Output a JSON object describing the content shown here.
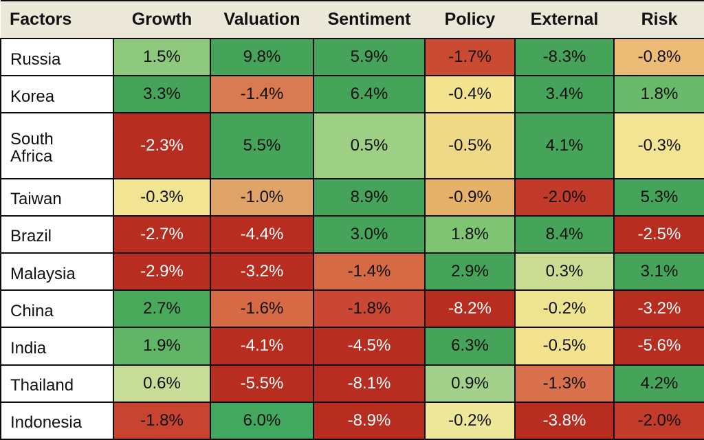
{
  "colors": {
    "header_bg": "#ebe8da",
    "grid_border": "#0d0d0d",
    "label_bg": "#ffffff",
    "text_dark": "#101010",
    "text_light": "#ffffff",
    "strong_green": "#45a35a",
    "dark_red": "#b72d20"
  },
  "table": {
    "header": {
      "factor_label": "Factors",
      "columns": [
        "Growth",
        "Valuation",
        "Sentiment",
        "Policy",
        "External",
        "Risk"
      ]
    },
    "rows": [
      {
        "country": "Russia",
        "cells": [
          {
            "value": "1.5%",
            "bg": "#8dc87d",
            "fg": "#101010"
          },
          {
            "value": "9.8%",
            "bg": "#45a35a",
            "fg": "#101010"
          },
          {
            "value": "5.9%",
            "bg": "#45a35a",
            "fg": "#101010"
          },
          {
            "value": "-1.7%",
            "bg": "#cb4a32",
            "fg": "#101010"
          },
          {
            "value": "-8.3%",
            "bg": "#45a35a",
            "fg": "#101010"
          },
          {
            "value": "-0.8%",
            "bg": "#ecbc76",
            "fg": "#101010"
          }
        ]
      },
      {
        "country": "Korea",
        "cells": [
          {
            "value": "3.3%",
            "bg": "#45a35a",
            "fg": "#101010"
          },
          {
            "value": "-1.4%",
            "bg": "#d87a52",
            "fg": "#101010"
          },
          {
            "value": "6.4%",
            "bg": "#45a35a",
            "fg": "#101010"
          },
          {
            "value": "-0.4%",
            "bg": "#f3e38e",
            "fg": "#101010"
          },
          {
            "value": "3.4%",
            "bg": "#45a35a",
            "fg": "#101010"
          },
          {
            "value": "1.8%",
            "bg": "#69ba6b",
            "fg": "#101010"
          }
        ]
      },
      {
        "country": "South\nAfrica",
        "cells": [
          {
            "value": "-2.3%",
            "bg": "#b72d20",
            "fg": "#ffffff"
          },
          {
            "value": "5.5%",
            "bg": "#45a35a",
            "fg": "#101010"
          },
          {
            "value": "0.5%",
            "bg": "#9dcf85",
            "fg": "#101010"
          },
          {
            "value": "-0.5%",
            "bg": "#efd987",
            "fg": "#101010"
          },
          {
            "value": "4.1%",
            "bg": "#45a35a",
            "fg": "#101010"
          },
          {
            "value": "-0.3%",
            "bg": "#f2e492",
            "fg": "#101010"
          }
        ]
      },
      {
        "country": "Taiwan",
        "cells": [
          {
            "value": "-0.3%",
            "bg": "#f2e492",
            "fg": "#101010"
          },
          {
            "value": "-1.0%",
            "bg": "#e0a367",
            "fg": "#101010"
          },
          {
            "value": "8.9%",
            "bg": "#45a35a",
            "fg": "#101010"
          },
          {
            "value": "-0.9%",
            "bg": "#e6b269",
            "fg": "#101010"
          },
          {
            "value": "-2.0%",
            "bg": "#c23a29",
            "fg": "#101010"
          },
          {
            "value": "5.3%",
            "bg": "#45a35a",
            "fg": "#101010"
          }
        ]
      },
      {
        "country": "Brazil",
        "cells": [
          {
            "value": "-2.7%",
            "bg": "#b72d20",
            "fg": "#ffffff"
          },
          {
            "value": "-4.4%",
            "bg": "#b72d20",
            "fg": "#ffffff"
          },
          {
            "value": "3.0%",
            "bg": "#45a35a",
            "fg": "#101010"
          },
          {
            "value": "1.8%",
            "bg": "#7ec473",
            "fg": "#101010"
          },
          {
            "value": "8.4%",
            "bg": "#45a35a",
            "fg": "#101010"
          },
          {
            "value": "-2.5%",
            "bg": "#b72d20",
            "fg": "#ffffff"
          }
        ]
      },
      {
        "country": "Malaysia",
        "cells": [
          {
            "value": "-2.9%",
            "bg": "#b72d20",
            "fg": "#ffffff"
          },
          {
            "value": "-3.2%",
            "bg": "#b72d20",
            "fg": "#ffffff"
          },
          {
            "value": "-1.4%",
            "bg": "#d66a45",
            "fg": "#101010"
          },
          {
            "value": "2.9%",
            "bg": "#45a35a",
            "fg": "#101010"
          },
          {
            "value": "0.3%",
            "bg": "#cbdc93",
            "fg": "#101010"
          },
          {
            "value": "3.1%",
            "bg": "#45a35a",
            "fg": "#101010"
          }
        ]
      },
      {
        "country": "China",
        "cells": [
          {
            "value": "2.7%",
            "bg": "#48a95b",
            "fg": "#101010"
          },
          {
            "value": "-1.6%",
            "bg": "#d66a45",
            "fg": "#101010"
          },
          {
            "value": "-1.8%",
            "bg": "#c94733",
            "fg": "#101010"
          },
          {
            "value": "-8.2%",
            "bg": "#b72d20",
            "fg": "#ffffff"
          },
          {
            "value": "-0.2%",
            "bg": "#eee48f",
            "fg": "#101010"
          },
          {
            "value": "-3.2%",
            "bg": "#b72d20",
            "fg": "#ffffff"
          }
        ]
      },
      {
        "country": "India",
        "cells": [
          {
            "value": "1.9%",
            "bg": "#61b566",
            "fg": "#101010"
          },
          {
            "value": "-4.1%",
            "bg": "#b72d20",
            "fg": "#ffffff"
          },
          {
            "value": "-4.5%",
            "bg": "#b72d20",
            "fg": "#ffffff"
          },
          {
            "value": "6.3%",
            "bg": "#45a35a",
            "fg": "#101010"
          },
          {
            "value": "-0.5%",
            "bg": "#f3e38e",
            "fg": "#101010"
          },
          {
            "value": "-5.6%",
            "bg": "#b72d20",
            "fg": "#ffffff"
          }
        ]
      },
      {
        "country": "Thailand",
        "cells": [
          {
            "value": "0.6%",
            "bg": "#c6dc97",
            "fg": "#101010"
          },
          {
            "value": "-5.5%",
            "bg": "#b72d20",
            "fg": "#ffffff"
          },
          {
            "value": "-8.1%",
            "bg": "#b72d20",
            "fg": "#ffffff"
          },
          {
            "value": "0.9%",
            "bg": "#a3d18b",
            "fg": "#101010"
          },
          {
            "value": "-1.3%",
            "bg": "#d8714c",
            "fg": "#101010"
          },
          {
            "value": "4.2%",
            "bg": "#45a35a",
            "fg": "#101010"
          }
        ]
      },
      {
        "country": "Indonesia",
        "cells": [
          {
            "value": "-1.8%",
            "bg": "#c84431",
            "fg": "#101010"
          },
          {
            "value": "6.0%",
            "bg": "#42a75f",
            "fg": "#101010"
          },
          {
            "value": "-8.9%",
            "bg": "#b72d20",
            "fg": "#ffffff"
          },
          {
            "value": "-0.2%",
            "bg": "#eee79a",
            "fg": "#101010"
          },
          {
            "value": "-3.8%",
            "bg": "#b72d20",
            "fg": "#ffffff"
          },
          {
            "value": "-2.0%",
            "bg": "#c33b2b",
            "fg": "#101010"
          }
        ]
      }
    ]
  },
  "chart_data": {
    "type": "heatmap",
    "title": "Factors",
    "unit": "percent",
    "columns": [
      "Growth",
      "Valuation",
      "Sentiment",
      "Policy",
      "External",
      "Risk"
    ],
    "rows": [
      "Russia",
      "Korea",
      "South Africa",
      "Taiwan",
      "Brazil",
      "Malaysia",
      "China",
      "India",
      "Thailand",
      "Indonesia"
    ],
    "values": [
      [
        1.5,
        9.8,
        5.9,
        -1.7,
        -8.3,
        -0.8
      ],
      [
        3.3,
        -1.4,
        6.4,
        -0.4,
        3.4,
        1.8
      ],
      [
        -2.3,
        5.5,
        0.5,
        -0.5,
        4.1,
        -0.3
      ],
      [
        -0.3,
        -1.0,
        8.9,
        -0.9,
        -2.0,
        5.3
      ],
      [
        -2.7,
        -4.4,
        3.0,
        1.8,
        8.4,
        -2.5
      ],
      [
        -2.9,
        -3.2,
        -1.4,
        2.9,
        0.3,
        3.1
      ],
      [
        2.7,
        -1.6,
        -1.8,
        -8.2,
        -0.2,
        -3.2
      ],
      [
        1.9,
        -4.1,
        -4.5,
        6.3,
        -0.5,
        -5.6
      ],
      [
        0.6,
        -5.5,
        -8.1,
        0.9,
        -1.3,
        4.2
      ],
      [
        -1.8,
        6.0,
        -8.9,
        -0.2,
        -3.8,
        -2.0
      ]
    ],
    "color_scale": "red-yellow-green",
    "legend": "none",
    "grid": true
  }
}
